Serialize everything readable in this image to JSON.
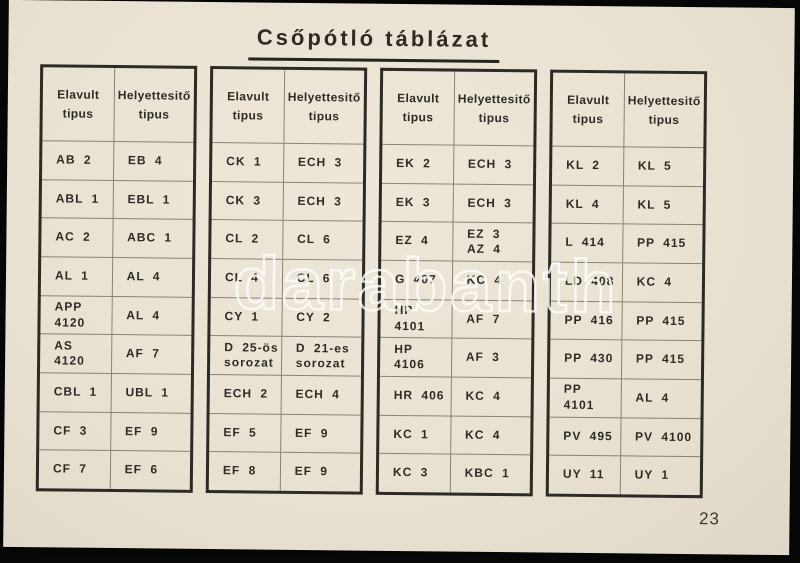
{
  "title": "Csőpótló táblázat",
  "watermark": "darabanth",
  "page_number": "23",
  "column_headers": {
    "obsolete": "Elavult\ntipus",
    "replacement": "Helyettesitő\ntipus"
  },
  "tables": [
    {
      "rows": [
        {
          "old": "AB 2",
          "new": "EB 4"
        },
        {
          "old": "ABL 1",
          "new": "EBL 1"
        },
        {
          "old": "AC 2",
          "new": "ABC 1"
        },
        {
          "old": "AL 1",
          "new": "AL 4"
        },
        {
          "old": "APP 4120",
          "new": "AL 4"
        },
        {
          "old": "AS 4120",
          "new": "AF 7"
        },
        {
          "old": "CBL 1",
          "new": "UBL 1"
        },
        {
          "old": "CF 3",
          "new": "EF 9"
        },
        {
          "old": "CF 7",
          "new": "EF 6"
        }
      ]
    },
    {
      "rows": [
        {
          "old": "CK 1",
          "new": "ECH 3"
        },
        {
          "old": "CK 3",
          "new": "ECH 3"
        },
        {
          "old": "CL 2",
          "new": "CL 6"
        },
        {
          "old": "CL 4",
          "new": "CL 6"
        },
        {
          "old": "CY 1",
          "new": "CY 2"
        },
        {
          "old": "D 25-ös\nsorozat",
          "new": "D 21-es\nsorozat"
        },
        {
          "old": "ECH 2",
          "new": "ECH 4"
        },
        {
          "old": "EF 5",
          "new": "EF 9"
        },
        {
          "old": "EF 8",
          "new": "EF 9"
        }
      ]
    },
    {
      "rows": [
        {
          "old": "EK 2",
          "new": "ECH 3"
        },
        {
          "old": "EK 3",
          "new": "ECH 3"
        },
        {
          "old": "EZ 4",
          "new": "EZ 3\nAZ 4"
        },
        {
          "old": "G 407",
          "new": "KC 4"
        },
        {
          "old": "HP 4101",
          "new": "AF 7"
        },
        {
          "old": "HP 4106",
          "new": "AF 3"
        },
        {
          "old": "HR 406",
          "new": "KC 4"
        },
        {
          "old": "KC 1",
          "new": "KC 4"
        },
        {
          "old": "KC 3",
          "new": "KBC 1"
        }
      ]
    },
    {
      "rows": [
        {
          "old": "KL 2",
          "new": "KL 5"
        },
        {
          "old": "KL 4",
          "new": "KL 5"
        },
        {
          "old": "L 414",
          "new": "PP 415"
        },
        {
          "old": "LD 408",
          "new": "KC 4"
        },
        {
          "old": "PP 416",
          "new": "PP 415"
        },
        {
          "old": "PP 430",
          "new": "PP 415"
        },
        {
          "old": "PP 4101",
          "new": "AL 4"
        },
        {
          "old": "PV 495",
          "new": "PV 4100"
        },
        {
          "old": "UY 11",
          "new": "UY 1"
        }
      ]
    }
  ],
  "colors": {
    "paper": "#e9e2d3",
    "ink": "#2e2b26",
    "scan_background": "#070707",
    "watermark": "#ffffff"
  }
}
